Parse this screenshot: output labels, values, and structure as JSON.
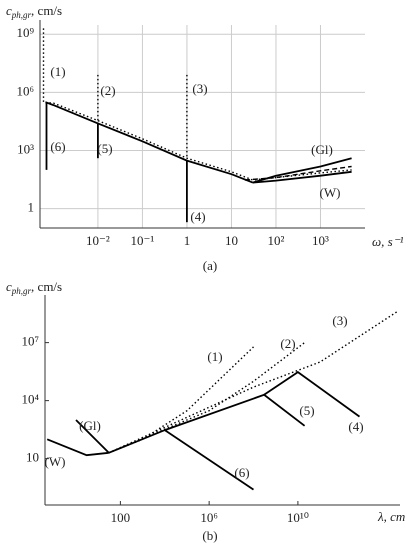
{
  "chart_data": [
    {
      "type": "line",
      "caption": "(a)",
      "ylabel": {
        "symbol": "c",
        "subscript": "ph,gr",
        "unit": ", cm/s"
      },
      "xlabel": "ω, s⁻¹",
      "xlog": true,
      "ylog": true,
      "grid": true,
      "xlim": [
        0.0005,
        10000
      ],
      "ylim": [
        0.1,
        3000000000
      ],
      "xticks": [
        {
          "value": 0.01,
          "label": "10⁻²"
        },
        {
          "value": 0.1,
          "label": "10⁻¹"
        },
        1,
        10,
        {
          "value": 100,
          "label": "10²"
        },
        {
          "value": 1000,
          "label": "10³"
        }
      ],
      "yticks": [
        1,
        {
          "value": 1000,
          "label": "10³"
        },
        {
          "value": 1000000,
          "label": "10⁶"
        },
        {
          "value": 1000000000,
          "label": "10⁹"
        }
      ],
      "series": [
        {
          "name": "(1)",
          "style": "dotted",
          "color": "#000000",
          "x": [
            0.0006,
            0.0006,
            0.001,
            0.01,
            0.1,
            1,
            10,
            30,
            1000,
            5000
          ],
          "values": [
            2000000000,
            300000,
            280000,
            35000,
            4000,
            400,
            80,
            30,
            70,
            100
          ]
        },
        {
          "name": "(2)",
          "style": "dotted",
          "color": "#000000",
          "x": [
            0.01,
            0.01
          ],
          "values": [
            8000000,
            35000
          ]
        },
        {
          "name": "(3)",
          "style": "dotted",
          "color": "#000000",
          "x": [
            1,
            1
          ],
          "values": [
            8000000,
            400
          ]
        },
        {
          "name": "(4)",
          "style": "solid",
          "color": "#000000",
          "x": [
            1,
            1
          ],
          "values": [
            0.2,
            300
          ]
        },
        {
          "name": "(5)",
          "style": "solid",
          "color": "#000000",
          "x": [
            0.01,
            0.01
          ],
          "values": [
            400,
            25000
          ]
        },
        {
          "name": "(6)",
          "style": "solid",
          "color": "#000000",
          "x": [
            0.0007,
            0.0007,
            0.001,
            0.01,
            0.1,
            1,
            10,
            30
          ],
          "values": [
            100,
            300000,
            220000,
            25000,
            3000,
            300,
            60,
            22
          ]
        },
        {
          "name": "(Gl)",
          "style": "solid",
          "color": "#000000",
          "x": [
            30,
            100,
            1000,
            5000
          ],
          "values": [
            22,
            50,
            150,
            400
          ]
        },
        {
          "name": "(W)",
          "style": "solid",
          "color": "#000000",
          "x": [
            30,
            100,
            1000,
            5000
          ],
          "values": [
            22,
            28,
            50,
            80
          ]
        },
        {
          "style": "dashed",
          "color": "#000000",
          "x": [
            20,
            100,
            1000,
            5000
          ],
          "values": [
            30,
            40,
            90,
            150
          ]
        }
      ]
    },
    {
      "type": "line",
      "caption": "(b)",
      "ylabel": {
        "symbol": "c",
        "subscript": "ph,gr",
        "unit": ", cm/s"
      },
      "xlabel": "λ, cm",
      "xlog": true,
      "ylog": true,
      "grid": false,
      "xlim": [
        0.04,
        400000000000000
      ],
      "ylim": [
        0.04,
        1600000000
      ],
      "xticks": [
        100,
        {
          "value": 1000000,
          "label": "10⁶"
        },
        {
          "value": 10000000000,
          "label": "10¹⁰"
        }
      ],
      "yticks": [
        10,
        {
          "value": 10000,
          "label": "10⁴"
        },
        {
          "value": 10000000,
          "label": "10⁷"
        }
      ],
      "series": [
        {
          "name": "(1)",
          "style": "dotted",
          "color": "#000000",
          "x": [
            30,
            1000,
            100000,
            100000000
          ],
          "values": [
            20,
            100,
            3000,
            6000000
          ]
        },
        {
          "name": "(2)",
          "style": "dotted",
          "color": "#000000",
          "x": [
            30,
            1000000,
            100000000,
            20000000000
          ],
          "values": [
            20,
            3000,
            100000,
            10000000
          ]
        },
        {
          "name": "(3)",
          "style": "dotted",
          "color": "#000000",
          "x": [
            30,
            100000000,
            100000000000,
            300000000000000
          ],
          "values": [
            20,
            50000,
            1000000,
            400000000
          ]
        },
        {
          "name": "(4)",
          "style": "solid",
          "color": "#000000",
          "x": [
            300000000,
            10000000000,
            6000000000000
          ],
          "values": [
            20000,
            300000,
            1500
          ]
        },
        {
          "name": "(5)",
          "style": "solid",
          "color": "#000000",
          "x": [
            10000,
            300000000,
            20000000000
          ],
          "values": [
            300,
            20000,
            500
          ]
        },
        {
          "name": "(6)",
          "style": "solid",
          "color": "#000000",
          "x": [
            30,
            10000,
            100000000
          ],
          "values": [
            20,
            300,
            0.25
          ]
        },
        {
          "name": "(Gl)",
          "style": "solid",
          "color": "#000000",
          "x": [
            1,
            30
          ],
          "values": [
            1000,
            20
          ]
        },
        {
          "name": "(W)",
          "style": "solid",
          "color": "#000000",
          "x": [
            0.05,
            3,
            30
          ],
          "values": [
            100,
            15,
            20
          ]
        }
      ]
    }
  ]
}
